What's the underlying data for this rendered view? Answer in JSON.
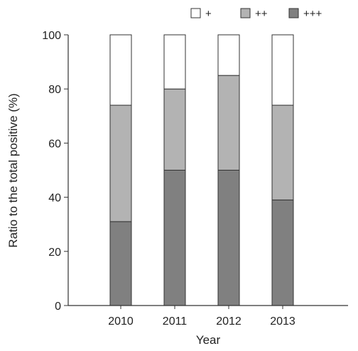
{
  "chart_data": {
    "type": "bar",
    "stacked": true,
    "title": "",
    "xlabel": "Year",
    "ylabel": "Ratio to the total positive (%)",
    "ylim": [
      0,
      100
    ],
    "yticks": [
      "0",
      "20",
      "40",
      "60",
      "80",
      "100"
    ],
    "categories": [
      "2010",
      "2011",
      "2012",
      "2013"
    ],
    "series": [
      {
        "name": "+++",
        "values": [
          31,
          50,
          50,
          39
        ],
        "color": "#808080"
      },
      {
        "name": "++",
        "values": [
          43,
          30,
          35,
          35
        ],
        "color": "#b3b3b3"
      },
      {
        "name": "+",
        "values": [
          26,
          20,
          15,
          26
        ],
        "color": "#ffffff"
      }
    ],
    "legend_order": [
      "+",
      "++",
      "+++"
    ],
    "legend_position": "top-right",
    "grid": false
  }
}
